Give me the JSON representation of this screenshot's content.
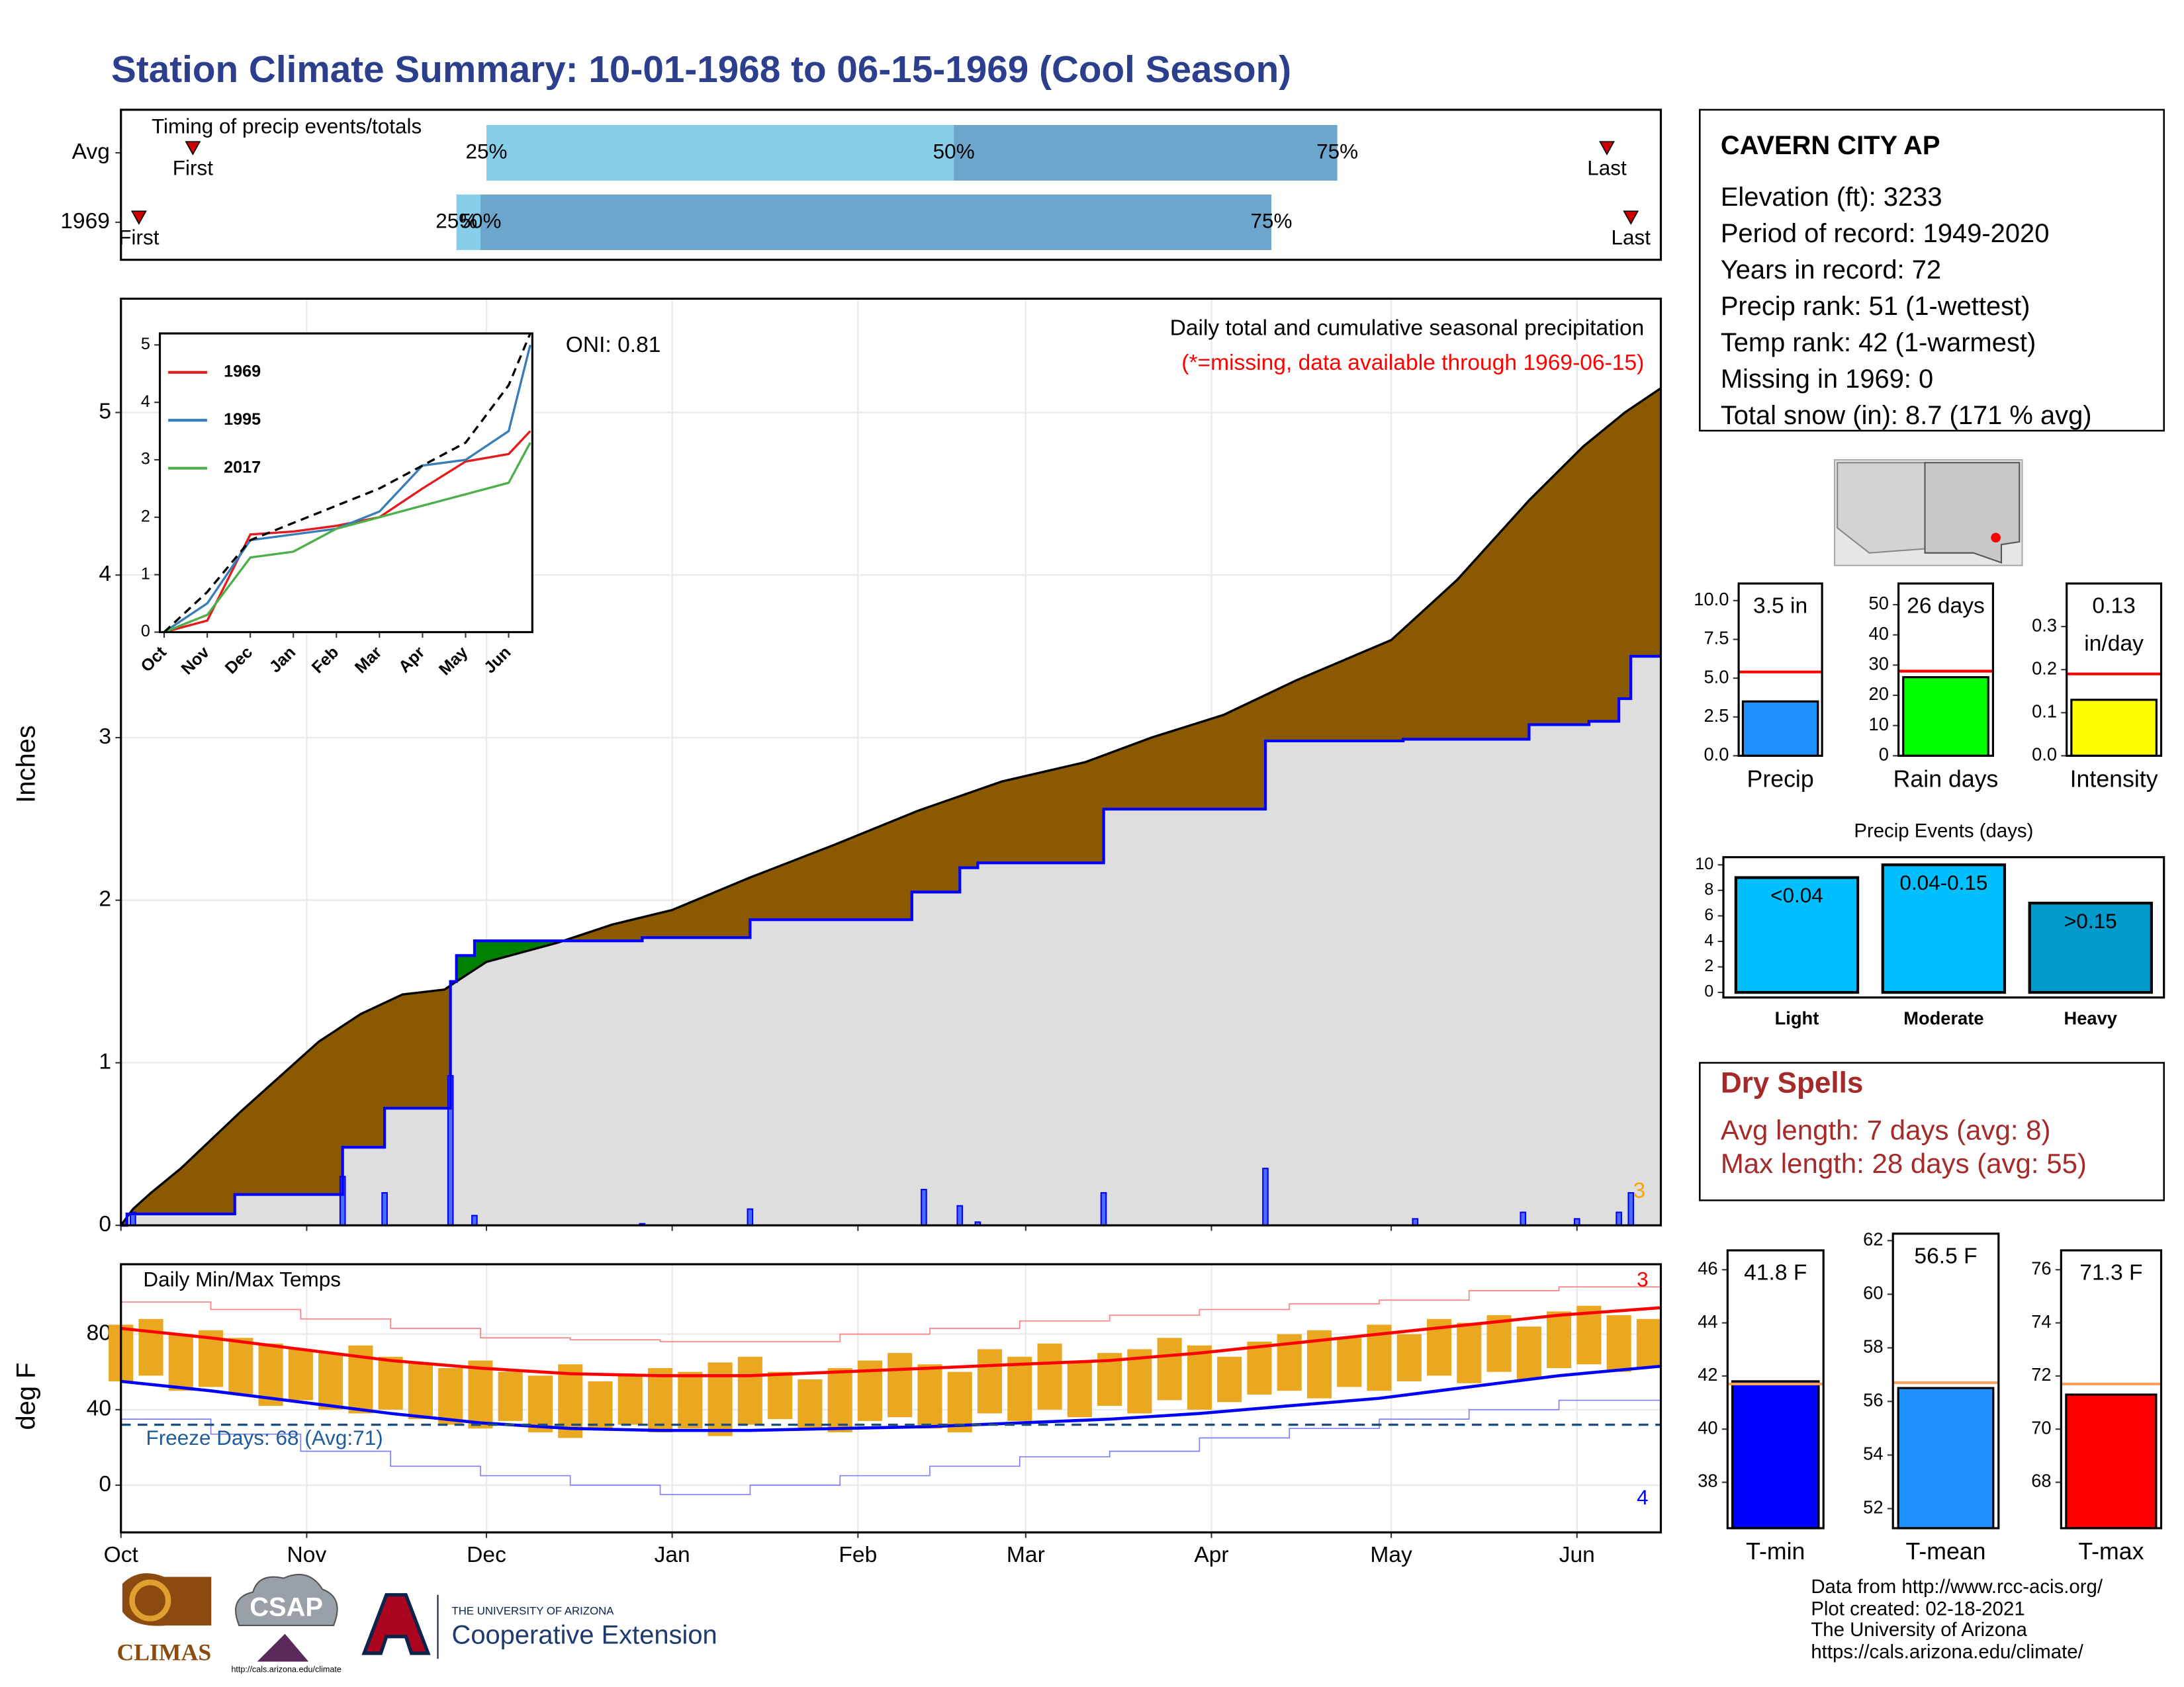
{
  "title": "Station Climate Summary: 10-01-1968 to 06-15-1969 (Cool Season)",
  "chart_data": [
    {
      "type": "timing",
      "title": "Timing of precip events/totals",
      "xlim": [
        0,
        257
      ],
      "labels": {
        "first": "First",
        "last": "Last",
        "p25": "25%",
        "p50": "50%",
        "p75": "75%"
      },
      "colors": {
        "p25": "#87ceeb",
        "p50": "#6ca6cd"
      },
      "marker_color": "#cc0000",
      "rows": [
        {
          "name": "Avg",
          "first": 12,
          "p25": 61,
          "p50": 139,
          "p75": 203,
          "last": 248
        },
        {
          "name": "1969",
          "first": 3,
          "p25": 56,
          "p50": 60,
          "p75": 192,
          "last": 252
        }
      ]
    },
    {
      "type": "area",
      "xlim": [
        0,
        257
      ],
      "ylim": [
        0,
        5.7
      ],
      "xticks": [
        0,
        31,
        61,
        92,
        123,
        151,
        182,
        212,
        243
      ],
      "yticks": [
        0,
        1,
        2,
        3,
        4,
        5
      ],
      "grid": true,
      "y_label": "Inches",
      "surplus_color": "#008000",
      "series": [
        {
          "color": "#000000",
          "fill": "#8b5a00",
          "x": [
            0,
            2,
            5,
            10,
            20,
            33,
            40,
            47,
            54,
            56,
            61,
            73,
            82,
            92,
            105,
            119,
            133,
            147,
            161,
            172,
            184,
            196,
            212,
            223,
            235,
            244,
            251,
            257
          ],
          "values": [
            0,
            0.1,
            0.2,
            0.35,
            0.7,
            1.13,
            1.3,
            1.42,
            1.45,
            1.5,
            1.62,
            1.74,
            1.85,
            1.94,
            2.14,
            2.34,
            2.55,
            2.73,
            2.85,
            3.0,
            3.14,
            3.35,
            3.6,
            3.97,
            4.46,
            4.79,
            5.0,
            5.15
          ]
        },
        {
          "color": "#0000ff",
          "fill": "#dedede",
          "drawstyle": "steps",
          "x": [
            0,
            1,
            19,
            37,
            44,
            55,
            56,
            59,
            87,
            105,
            132,
            140,
            143,
            164,
            191,
            214,
            235,
            245,
            250,
            252,
            257
          ],
          "values": [
            0,
            0.07,
            0.19,
            0.48,
            0.72,
            1.5,
            1.66,
            1.75,
            1.77,
            1.88,
            2.05,
            2.2,
            2.23,
            2.56,
            2.98,
            2.99,
            3.08,
            3.1,
            3.24,
            3.5,
            3.5
          ]
        }
      ],
      "daily": {
        "color": "#0000ff",
        "x": [
          2,
          37,
          44,
          55,
          59,
          87,
          105,
          134,
          140,
          143,
          164,
          191,
          216,
          234,
          243,
          250,
          252
        ],
        "values": [
          0.08,
          0.3,
          0.2,
          0.92,
          0.06,
          0.01,
          0.1,
          0.22,
          0.12,
          0.02,
          0.2,
          0.35,
          0.04,
          0.08,
          0.04,
          0.08,
          0.2
        ]
      },
      "annotations": [
        {
          "text": "ONI: 0.81",
          "color": "#000000"
        },
        {
          "text": "Daily total and cumulative seasonal precipitation",
          "color": "#000000"
        },
        {
          "text": "(*=missing, data available through 1969-06-15)",
          "color": "#ff0000"
        },
        {
          "text": "3",
          "color": "#ffa500"
        }
      ]
    },
    {
      "type": "line",
      "xlim": [
        -0.1,
        8.55
      ],
      "ylim": [
        0,
        5.2
      ],
      "xticks": [
        {
          "value": 0,
          "label": "Oct"
        },
        {
          "value": 1,
          "label": "Nov"
        },
        {
          "value": 2,
          "label": "Dec"
        },
        {
          "value": 3,
          "label": "Jan"
        },
        {
          "value": 4,
          "label": "Feb"
        },
        {
          "value": 5,
          "label": "Mar"
        },
        {
          "value": 6,
          "label": "Apr"
        },
        {
          "value": 7,
          "label": "May"
        },
        {
          "value": 8,
          "label": "Jun"
        }
      ],
      "yticks": [
        0,
        1,
        2,
        3,
        4,
        5
      ],
      "legend": "upper left",
      "x": [
        0,
        1,
        2,
        3,
        4,
        5,
        6,
        7,
        8,
        8.5
      ],
      "series": [
        {
          "name": "1969",
          "color": "#e41a1c",
          "values": [
            0,
            0.2,
            1.7,
            1.75,
            1.85,
            2.0,
            2.5,
            2.97,
            3.1,
            3.5
          ]
        },
        {
          "name": "1995",
          "color": "#377eb8",
          "values": [
            0,
            0.5,
            1.6,
            1.7,
            1.8,
            2.1,
            2.9,
            3.0,
            3.5,
            5.0
          ]
        },
        {
          "name": "2017",
          "color": "#4daf4a",
          "values": [
            0,
            0.3,
            1.3,
            1.4,
            1.8,
            2.0,
            2.2,
            2.4,
            2.6,
            3.3
          ]
        },
        {
          "color": "#000000",
          "dashed": true,
          "values": [
            0,
            0.7,
            1.6,
            1.9,
            2.2,
            2.5,
            2.9,
            3.3,
            4.3,
            5.2
          ]
        }
      ]
    },
    {
      "type": "range",
      "title": "Daily Min/Max Temps",
      "xlim": [
        0,
        257
      ],
      "ylim": [
        -25,
        117
      ],
      "xticks": [
        {
          "value": 0,
          "label": "Oct"
        },
        {
          "value": 31,
          "label": "Nov"
        },
        {
          "value": 61,
          "label": "Dec"
        },
        {
          "value": 92,
          "label": "Jan"
        },
        {
          "value": 123,
          "label": "Feb"
        },
        {
          "value": 151,
          "label": "Mar"
        },
        {
          "value": 182,
          "label": "Apr"
        },
        {
          "value": 212,
          "label": "May"
        },
        {
          "value": 243,
          "label": "Jun"
        }
      ],
      "yticks": [
        0,
        40,
        80
      ],
      "grid": true,
      "y_label": "deg F",
      "bars": {
        "color": "#e9a820",
        "x": [
          0,
          5,
          10,
          15,
          20,
          25,
          30,
          35,
          40,
          45,
          50,
          55,
          60,
          65,
          70,
          75,
          80,
          85,
          90,
          95,
          100,
          105,
          110,
          115,
          120,
          125,
          130,
          135,
          140,
          145,
          150,
          155,
          160,
          165,
          170,
          175,
          180,
          185,
          190,
          195,
          200,
          205,
          210,
          215,
          220,
          225,
          230,
          235,
          240,
          245,
          250,
          255
        ],
        "max": [
          85,
          88,
          80,
          82,
          78,
          75,
          72,
          70,
          74,
          68,
          65,
          62,
          66,
          60,
          58,
          64,
          55,
          58,
          62,
          60,
          65,
          68,
          60,
          56,
          62,
          66,
          70,
          64,
          60,
          72,
          68,
          75,
          65,
          70,
          72,
          78,
          74,
          68,
          76,
          80,
          82,
          78,
          85,
          80,
          88,
          86,
          90,
          84,
          92,
          95,
          90,
          88
        ],
        "min": [
          55,
          58,
          50,
          52,
          48,
          42,
          45,
          40,
          38,
          40,
          35,
          32,
          30,
          34,
          28,
          25,
          30,
          32,
          28,
          30,
          26,
          32,
          35,
          30,
          28,
          34,
          36,
          30,
          28,
          38,
          34,
          40,
          36,
          42,
          38,
          45,
          40,
          44,
          48,
          50,
          46,
          52,
          50,
          55,
          58,
          54,
          60,
          56,
          62,
          64,
          60,
          62
        ]
      },
      "line_x": [
        0,
        15,
        30,
        45,
        60,
        75,
        90,
        105,
        120,
        135,
        150,
        165,
        180,
        195,
        210,
        225,
        240,
        257
      ],
      "lines": [
        {
          "color": "#ff8080",
          "width": 0.8,
          "drawstyle": "steps",
          "values": [
            97,
            93,
            88,
            83,
            78,
            77,
            76,
            76,
            80,
            83,
            87,
            90,
            93,
            96,
            98,
            103,
            105,
            108
          ]
        },
        {
          "color": "#ff0000",
          "width": 2.2,
          "values": [
            83,
            78,
            72,
            66,
            62,
            59,
            58,
            58,
            60,
            62,
            64,
            66,
            70,
            75,
            80,
            85,
            90,
            94
          ]
        },
        {
          "color": "#0000ff",
          "width": 2.2,
          "values": [
            55,
            50,
            44,
            38,
            33,
            30,
            29,
            29,
            30,
            31,
            33,
            35,
            38,
            42,
            46,
            52,
            58,
            63
          ]
        },
        {
          "color": "#8080ff",
          "width": 0.8,
          "drawstyle": "steps",
          "values": [
            35,
            27,
            18,
            10,
            5,
            0,
            -5,
            0,
            5,
            10,
            15,
            18,
            25,
            30,
            35,
            40,
            45,
            50
          ]
        }
      ],
      "freeze": {
        "value": 32,
        "color": "#1f4e79"
      },
      "annotations": [
        {
          "text": "Freeze Days: 68 (Avg:71)",
          "color": "#1f5c99"
        },
        {
          "text": "3",
          "color": "#ff0000"
        },
        {
          "text": "4",
          "color": "#0000ff"
        }
      ]
    },
    {
      "type": "bar",
      "categories": [
        "Precip"
      ],
      "values": [
        3.5
      ],
      "value_labels": [
        "3.5 in"
      ],
      "colors": [
        "#1e90ff"
      ],
      "average": [
        5.4
      ],
      "average_color": "#ff0000",
      "ylim": [
        0,
        11.1
      ],
      "yticks": [
        {
          "value": 0,
          "label": "0.0"
        },
        2.5,
        {
          "value": 5,
          "label": "5.0"
        },
        7.5,
        {
          "value": 10,
          "label": "10.0"
        }
      ]
    },
    {
      "type": "bar",
      "categories": [
        "Rain days"
      ],
      "values": [
        26
      ],
      "value_labels": [
        "26 days"
      ],
      "colors": [
        "#00ff00"
      ],
      "average": [
        28
      ],
      "average_color": "#ff0000",
      "ylim": [
        0,
        57
      ],
      "yticks": [
        0,
        10,
        20,
        30,
        40,
        50
      ]
    },
    {
      "type": "bar",
      "categories": [
        "Intensity"
      ],
      "values": [
        0.13
      ],
      "value_labels": [
        "0.13"
      ],
      "unit": "in/day",
      "colors": [
        "#ffff00"
      ],
      "average": [
        0.19
      ],
      "average_color": "#ff0000",
      "ylim": [
        0,
        0.4
      ],
      "yticks": [
        {
          "value": 0,
          "label": "0.0"
        },
        0.1,
        0.2,
        0.3
      ]
    },
    {
      "type": "bar",
      "title": "Precip Events (days)",
      "categories": [
        "Light",
        "Moderate",
        "Heavy"
      ],
      "values": [
        9,
        10,
        7
      ],
      "bar_labels": [
        "<0.04",
        "0.04-0.15",
        ">0.15"
      ],
      "colors": [
        "#00bfff",
        "#00bfff",
        "#009acd"
      ],
      "ylim": [
        -0.4,
        10.6
      ],
      "yticks": [
        0,
        2,
        4,
        6,
        8,
        10
      ]
    },
    {
      "type": "bar",
      "categories": [
        "T-min"
      ],
      "values": [
        41.8
      ],
      "value_labels": [
        "41.8 F"
      ],
      "colors": [
        "#0000ff"
      ],
      "average": [
        41.7
      ],
      "average_color": "#f4a460",
      "ylim": [
        36.27,
        46.73
      ],
      "yticks": [
        38,
        40,
        42,
        44,
        46
      ]
    },
    {
      "type": "bar",
      "categories": [
        "T-mean"
      ],
      "values": [
        56.5
      ],
      "value_labels": [
        "56.5 F"
      ],
      "colors": [
        "#1e90ff"
      ],
      "average": [
        56.7
      ],
      "average_color": "#f4a460",
      "ylim": [
        51.27,
        62.26
      ],
      "yticks": [
        52,
        54,
        56,
        58,
        60,
        62
      ]
    },
    {
      "type": "bar",
      "categories": [
        "T-max"
      ],
      "values": [
        71.3
      ],
      "value_labels": [
        "71.3 F"
      ],
      "colors": [
        "#ff0000"
      ],
      "average": [
        71.7
      ],
      "average_color": "#f4a460",
      "ylim": [
        66.27,
        76.73
      ],
      "yticks": [
        68,
        70,
        72,
        74,
        76
      ]
    }
  ],
  "info": {
    "name": "CAVERN CITY AP",
    "lines": [
      "Elevation (ft): 3233",
      "Period of record: 1949-2020",
      "Years in record: 72",
      "Precip rank: 51 (1-wettest)",
      "Temp rank: 42 (1-warmest)",
      "Missing in 1969: 0",
      "Total snow (in): 8.7 (171 % avg)"
    ]
  },
  "dry_spells": {
    "title": "Dry Spells",
    "lines": [
      "Avg length: 7 days (avg: 8)",
      "Max length: 28 days (avg: 55)"
    ]
  },
  "footer": {
    "credits": [
      "Data from http://www.rcc-acis.org/",
      "Plot created: 02-18-2021",
      "The University of Arizona",
      "https://cals.arizona.edu/climate/"
    ],
    "logos": [
      "CLIMAS",
      "CSAP",
      "http://cals.arizona.edu/climate",
      "THE UNIVERSITY OF ARIZONA",
      "Cooperative Extension"
    ]
  }
}
